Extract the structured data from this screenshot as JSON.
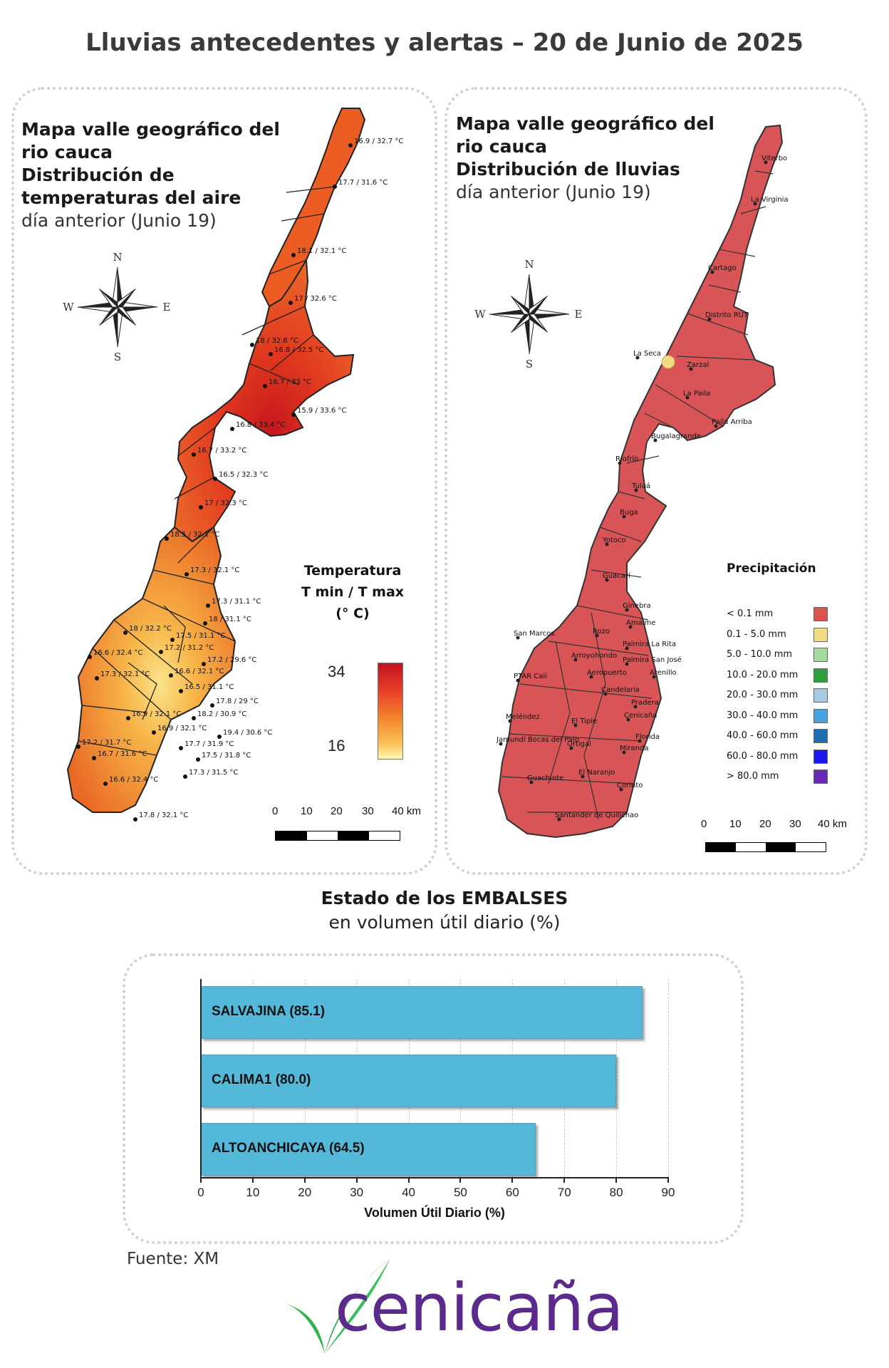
{
  "title": "Lluvias antecedentes y alertas – 20 de Junio de 2025",
  "temp_map": {
    "title_line1": "Mapa valle geográfico del",
    "title_line2": "rio cauca",
    "title_line3": "Distribución de",
    "title_line4": "temperaturas del aire",
    "subtitle": "día anterior (Junio 19)",
    "legend_title_1": "Temperatura",
    "legend_title_2": "T min / T max",
    "legend_title_3": "(° C)",
    "legend_max": "34",
    "legend_min": "16",
    "stations": [
      "16.9 / 32.7 °C",
      "17.7 / 31.6 °C",
      "18.1 / 32.1 °C",
      "17 / 32.6 °C",
      "18 / 32.6 °C",
      "16.8 / 32.5 °C",
      "16.7 / 33 °C",
      "15.9 / 33.6 °C",
      "16.8 / 33.4 °C",
      "16.7 / 33.2 °C",
      "16.5 / 32.3 °C",
      "17 / 32.3 °C",
      "18.5 / 32.1 °C",
      "17.3 / 32.1 °C",
      "17.3 / 31.1 °C",
      "18 / 31.1 °C",
      "18 / 32.2 °C",
      "17.5 / 31.1 °C",
      "17.2 / 31.2 °C",
      "17.2 / 29.6 °C",
      "16.6 / 32.4 °C",
      "16.6 / 32.1 °C",
      "17.3 / 32.1 °C",
      "16.5 / 31.1 °C",
      "17.8 / 29 °C",
      "16.9 / 32.1 °C",
      "18.2 / 30.9 °C",
      "16.9 / 32.1 °C",
      "19.4 / 30.6 °C",
      "17.2 / 31.7 °C",
      "17.7 / 31.9 °C",
      "16.7 / 31.6 °C",
      "17.5 / 31.8 °C",
      "16.6 / 32.4 °C",
      "17.3 / 31.5 °C",
      "17.8 / 32.1 °C"
    ]
  },
  "rain_map": {
    "title_line1": "Mapa valle geográfico del",
    "title_line2": "rio cauca",
    "title_line3": "Distribución de lluvias",
    "subtitle": "día anterior (Junio 19)",
    "legend_title": "Precipitación",
    "legend": [
      {
        "label": "< 0.1 mm",
        "color": "#d9534f"
      },
      {
        "label": "0.1 - 5.0 mm",
        "color": "#f0dc82"
      },
      {
        "label": "5.0 - 10.0 mm",
        "color": "#a8dba0"
      },
      {
        "label": "10.0 - 20.0 mm",
        "color": "#2e9e3a"
      },
      {
        "label": "20.0 - 30.0 mm",
        "color": "#a7c8e0"
      },
      {
        "label": "30.0 - 40.0 mm",
        "color": "#4aa3df"
      },
      {
        "label": "40.0 - 60.0 mm",
        "color": "#1f6fb0"
      },
      {
        "label": "60.0 - 80.0 mm",
        "color": "#1a1aee"
      },
      {
        "label": "> 80.0 mm",
        "color": "#6a2ab8"
      }
    ],
    "stations": [
      "Viterbo",
      "La Virginia",
      "Cartago",
      "Distrito RUT",
      "La Seca",
      "Zarzal",
      "La Paila",
      "Paila Arriba",
      "Bugalagrande",
      "Riofrío",
      "Tuluá",
      "Buga",
      "Yotoco",
      "Guacarí",
      "Ginebra",
      "Amaime",
      "San Marcos",
      "Rozo",
      "Palmira La Rita",
      "Arroyohondo",
      "Palmira San José",
      "Aeropuerto",
      "Arenillo",
      "PTAR Cali",
      "Candelaria",
      "Pradera",
      "Meléndez",
      "Cenicaña",
      "El Tiple",
      "Florida",
      "Jamundí Bocas del Palo",
      "Ortigal",
      "Miranda",
      "Guachinte",
      "El Naranjo",
      "Corinto",
      "Santander de Quilichao"
    ]
  },
  "scale": {
    "labels": [
      "0",
      "10",
      "20",
      "30",
      "40 km"
    ]
  },
  "compass": {
    "n": "N",
    "s": "S",
    "e": "E",
    "w": "W"
  },
  "reservoirs": {
    "title": "Estado de los EMBALSES",
    "subtitle": "en volumen útil diario (%)",
    "chart_data": {
      "type": "bar",
      "orientation": "horizontal",
      "categories": [
        "SALVAJINA",
        "CALIMA1",
        "ALTOANCHICAYA"
      ],
      "values": [
        85.1,
        80.0,
        64.5
      ],
      "bar_labels": [
        "SALVAJINA (85.1)",
        "CALIMA1 (80.0)",
        "ALTOANCHICAYA (64.5)"
      ],
      "xlabel": "Volumen Útil Diario (%)",
      "xlim": [
        0,
        90
      ],
      "xticks": [
        "0",
        "10",
        "20",
        "30",
        "40",
        "50",
        "60",
        "70",
        "80",
        "90"
      ],
      "grid": true,
      "color": "#54b9d9"
    }
  },
  "source": "Fuente: XM",
  "logo_text": "cenicaña"
}
